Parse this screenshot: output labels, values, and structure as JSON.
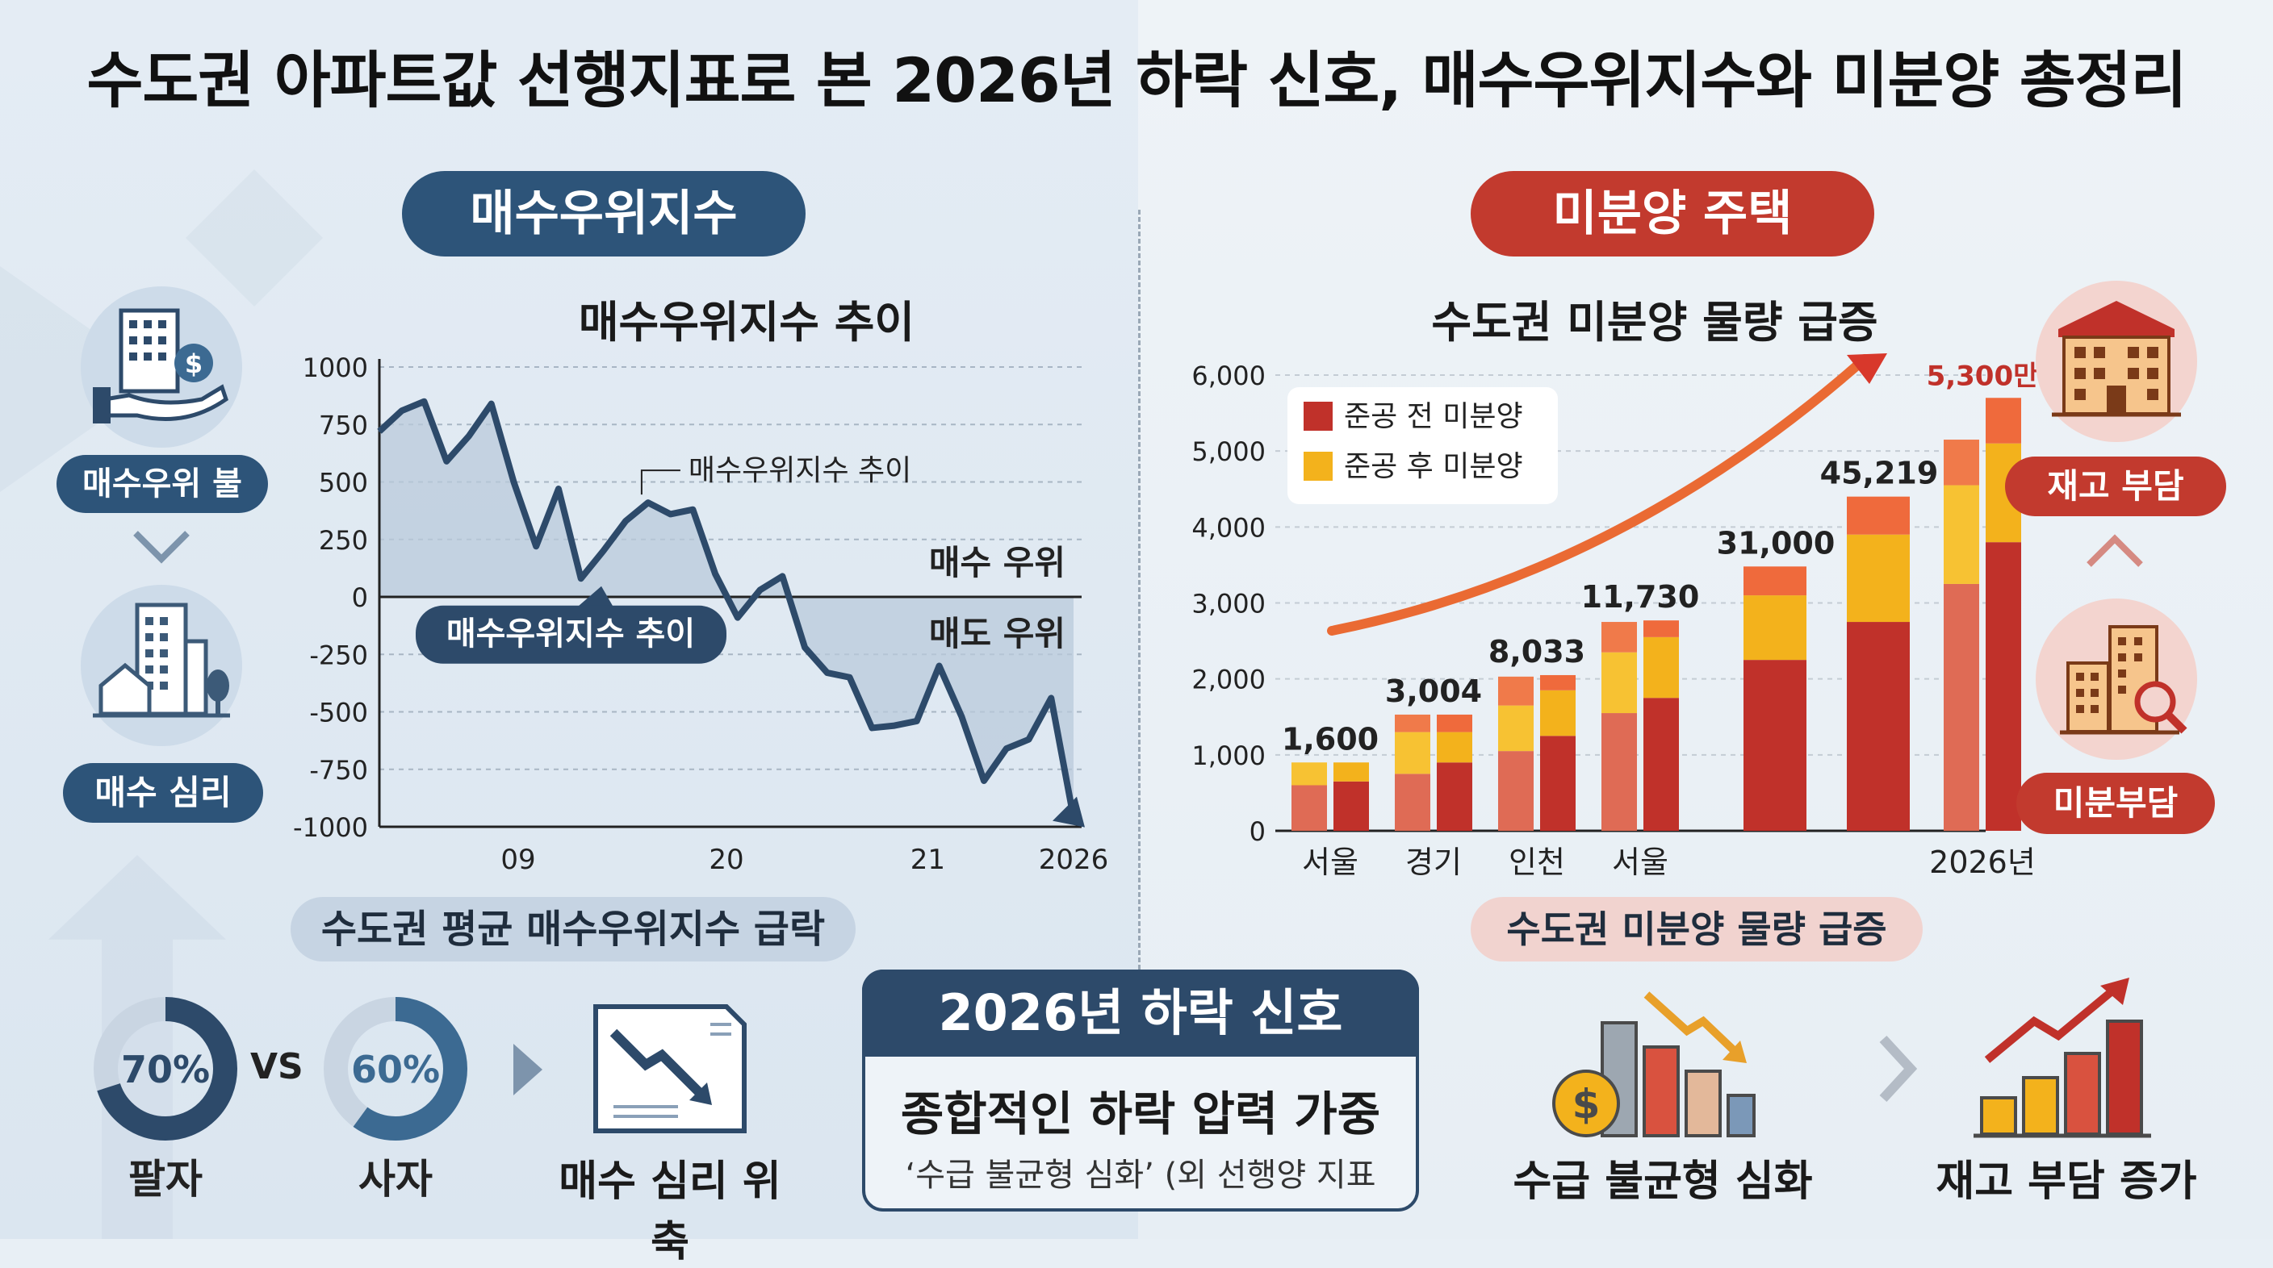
{
  "title": "수도권 아파트값 선행지표로 본 2026년 하락 신호, 매수우위지수와 미분양 총정리",
  "left": {
    "section_label": "매수우위지수",
    "chart_title": "매수우위지수 추이",
    "icon_labels": {
      "top": "매수우위 불",
      "bottom": "매수 심리"
    },
    "footer_pill": "수도권 평균 매수우위지수 급락",
    "donuts": [
      {
        "value_text": "70%",
        "value": 70,
        "label": "팔자",
        "color": "#2d4a6a"
      },
      {
        "value_text": "60%",
        "value": 60,
        "label": "사자",
        "color": "#3c6a92"
      }
    ],
    "vs": "VS",
    "doc_label": "매수 심리 위축"
  },
  "center_box": {
    "head": "2026년 하락 신호",
    "main": "종합적인 하락 압력 가중",
    "sub": "‘수급 불균형 심화’ (외 선행양 지표"
  },
  "right": {
    "section_label": "미분양 주택",
    "chart_title": "수도권 미분양 물량 급증",
    "icon_labels": {
      "top": "재고 부담",
      "bottom": "미분부담"
    },
    "footer_pill": "수도권 미분양 물량 급증",
    "bottom_labels": {
      "left": "수급 불균형 심화",
      "right": "재고 부담 증가"
    }
  },
  "chart_data": [
    {
      "type": "line",
      "title": "매수우위지수 추이",
      "ylim": [
        -1000,
        1000
      ],
      "yticks": [
        1000,
        750,
        500,
        250,
        0,
        -250,
        -500,
        -750,
        -1000
      ],
      "xticks": [
        "09",
        "20",
        "21",
        "2026"
      ],
      "series": [
        {
          "x": [
            0,
            1,
            2,
            3,
            4,
            5,
            6,
            7,
            8,
            9,
            10,
            11,
            12,
            13,
            14,
            15,
            16,
            17,
            18,
            19,
            20,
            21,
            22,
            23,
            24,
            25,
            26,
            27,
            28,
            29,
            30,
            31
          ],
          "values": [
            720,
            810,
            850,
            590,
            700,
            840,
            500,
            220,
            470,
            80,
            200,
            330,
            410,
            360,
            380,
            100,
            -90,
            30,
            90,
            -220,
            -330,
            -350,
            -570,
            -560,
            -540,
            -300,
            -520,
            -800,
            -660,
            -620,
            -440,
            -960
          ]
        }
      ],
      "annotations": {
        "line_label": "매수우위지수 추이",
        "area_label": "매수우위지수 추이",
        "above_zero": "매수 우위",
        "below_zero": "매도 우위"
      },
      "colors": {
        "line": "#2d4a6a",
        "area": "#b9cadb"
      }
    },
    {
      "type": "bar",
      "title": "수도권 미분양 물량 급증",
      "ylim": [
        0,
        6000
      ],
      "yticks": [
        "6,000",
        "5,000",
        "4,000",
        "3,000",
        "2,000",
        "1,000",
        "0"
      ],
      "xticks": [
        "서울",
        "경기",
        "인천",
        "서울",
        "",
        "",
        "2026년"
      ],
      "legend": [
        {
          "name": "준공 전 미분양",
          "color": "#c0312a"
        },
        {
          "name": "준공 후 미분양",
          "color": "#f3b21c"
        }
      ],
      "groups": [
        {
          "label": "1,600",
          "bars": [
            [
              600,
              300,
              0
            ],
            [
              650,
              250,
              0
            ]
          ]
        },
        {
          "label": "3,004",
          "bars": [
            [
              750,
              550,
              230
            ],
            [
              900,
              400,
              230
            ]
          ]
        },
        {
          "label": "8,033",
          "bars": [
            [
              1050,
              600,
              380
            ],
            [
              1250,
              600,
              200
            ]
          ]
        },
        {
          "label": "11,730",
          "bars": [
            [
              1550,
              800,
              400
            ],
            [
              1750,
              800,
              220
            ]
          ]
        },
        {
          "label": "31,000",
          "bars": [
            [
              2250,
              850,
              380
            ]
          ]
        },
        {
          "label": "45,219",
          "bars": [
            [
              2750,
              1150,
              500
            ]
          ]
        },
        {
          "label": "5,300만",
          "bars": [
            [
              3250,
              1300,
              600
            ],
            [
              3800,
              1300,
              600
            ]
          ]
        }
      ],
      "highlight_label": "5,300만"
    }
  ]
}
